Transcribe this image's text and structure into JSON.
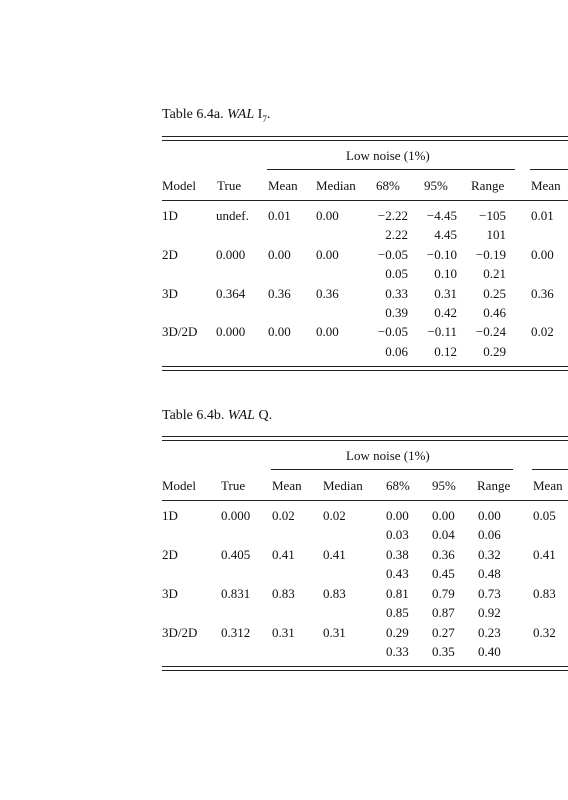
{
  "tables": [
    {
      "caption_prefix": "Table 6.4a.",
      "caption_italic": "WAL",
      "caption_rest": "I",
      "caption_sub": "7",
      "caption_end": ".",
      "group_label": "Low noise (1%)",
      "headers": [
        "Model",
        "True",
        "Mean",
        "Median",
        "68%",
        "95%",
        "Range",
        "Mean"
      ],
      "rows": [
        {
          "model": "1D",
          "true": "undef.",
          "mean": "0.01",
          "median": "0.00",
          "p68": [
            "−2.22",
            "2.22"
          ],
          "p95": [
            "−4.45",
            "4.45"
          ],
          "range": [
            "−105",
            "101"
          ],
          "mean2": "0.01"
        },
        {
          "model": "2D",
          "true": "0.000",
          "mean": "0.00",
          "median": "0.00",
          "p68": [
            "−0.05",
            "0.05"
          ],
          "p95": [
            "−0.10",
            "0.10"
          ],
          "range": [
            "−0.19",
            "0.21"
          ],
          "mean2": "0.00"
        },
        {
          "model": "3D",
          "true": "0.364",
          "mean": "0.36",
          "median": "0.36",
          "p68": [
            "0.33",
            "0.39"
          ],
          "p95": [
            "0.31",
            "0.42"
          ],
          "range": [
            "0.25",
            "0.46"
          ],
          "mean2": "0.36"
        },
        {
          "model": "3D/2D",
          "true": "0.000",
          "mean": "0.00",
          "median": "0.00",
          "p68": [
            "−0.05",
            "0.06"
          ],
          "p95": [
            "−0.11",
            "0.12"
          ],
          "range": [
            "−0.24",
            "0.29"
          ],
          "mean2": "0.02"
        }
      ]
    },
    {
      "caption_prefix": "Table 6.4b.",
      "caption_italic": "WAL",
      "caption_rest": "Q",
      "caption_sub": "",
      "caption_end": ".",
      "group_label": "Low noise (1%)",
      "headers": [
        "Model",
        "True",
        "Mean",
        "Median",
        "68%",
        "95%",
        "Range",
        "Mean"
      ],
      "rows": [
        {
          "model": "1D",
          "true": "0.000",
          "mean": "0.02",
          "median": "0.02",
          "p68": [
            "0.00",
            "0.03"
          ],
          "p95": [
            "0.00",
            "0.04"
          ],
          "range": [
            "0.00",
            "0.06"
          ],
          "mean2": "0.05"
        },
        {
          "model": "2D",
          "true": "0.405",
          "mean": "0.41",
          "median": "0.41",
          "p68": [
            "0.38",
            "0.43"
          ],
          "p95": [
            "0.36",
            "0.45"
          ],
          "range": [
            "0.32",
            "0.48"
          ],
          "mean2": "0.41"
        },
        {
          "model": "3D",
          "true": "0.831",
          "mean": "0.83",
          "median": "0.83",
          "p68": [
            "0.81",
            "0.85"
          ],
          "p95": [
            "0.79",
            "0.87"
          ],
          "range": [
            "0.73",
            "0.92"
          ],
          "mean2": "0.83"
        },
        {
          "model": "3D/2D",
          "true": "0.312",
          "mean": "0.31",
          "median": "0.31",
          "p68": [
            "0.29",
            "0.33"
          ],
          "p95": [
            "0.27",
            "0.35"
          ],
          "range": [
            "0.23",
            "0.40"
          ],
          "mean2": "0.32"
        }
      ]
    }
  ]
}
